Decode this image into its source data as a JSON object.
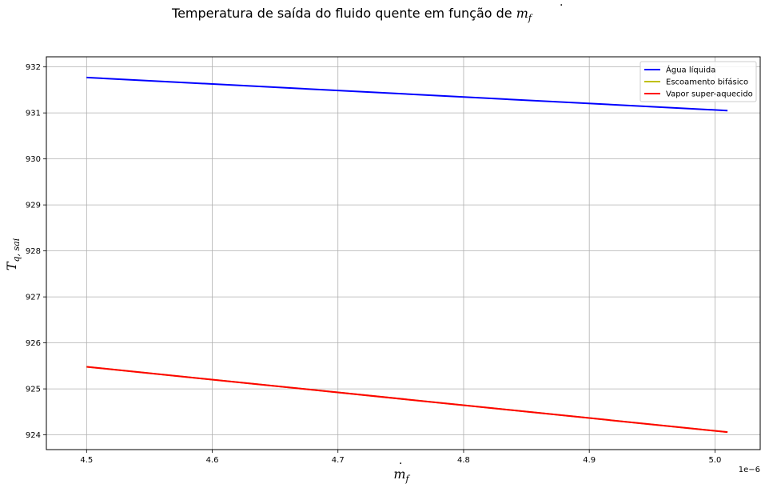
{
  "chart_data": {
    "type": "line",
    "title": {
      "text": "Temperatura de saída do fluido quente em função de ",
      "math_symbol": "m",
      "math_subscript": "f"
    },
    "xlabel": {
      "symbol": "m",
      "subscript": "f"
    },
    "ylabel": {
      "symbol": "T",
      "subscript": "q, sai"
    },
    "x_offset_label": "1e−6",
    "xlim": [
      4.468,
      5.036
    ],
    "ylim": [
      923.68,
      932.22
    ],
    "xticks": [
      4.5,
      4.6,
      4.7,
      4.8,
      4.9,
      5.0
    ],
    "xtick_labels": [
      "4.5",
      "4.6",
      "4.7",
      "4.8",
      "4.9",
      "5.0"
    ],
    "yticks": [
      924,
      925,
      926,
      927,
      928,
      929,
      930,
      931,
      932
    ],
    "grid": true,
    "legend_position": "top-right",
    "series": [
      {
        "name": "Água líquida",
        "color": "#0000ff",
        "x": [
          4.5,
          5.01
        ],
        "y": [
          931.77,
          931.05
        ]
      },
      {
        "name": "Escoamento bifásico",
        "color": "#bfbf00",
        "x": [
          4.5,
          5.01
        ],
        "y": [
          925.48,
          924.06
        ]
      },
      {
        "name": "Vapor super-aquecido",
        "color": "#ff0000",
        "x": [
          4.5,
          5.01
        ],
        "y": [
          925.48,
          924.06
        ]
      }
    ]
  }
}
